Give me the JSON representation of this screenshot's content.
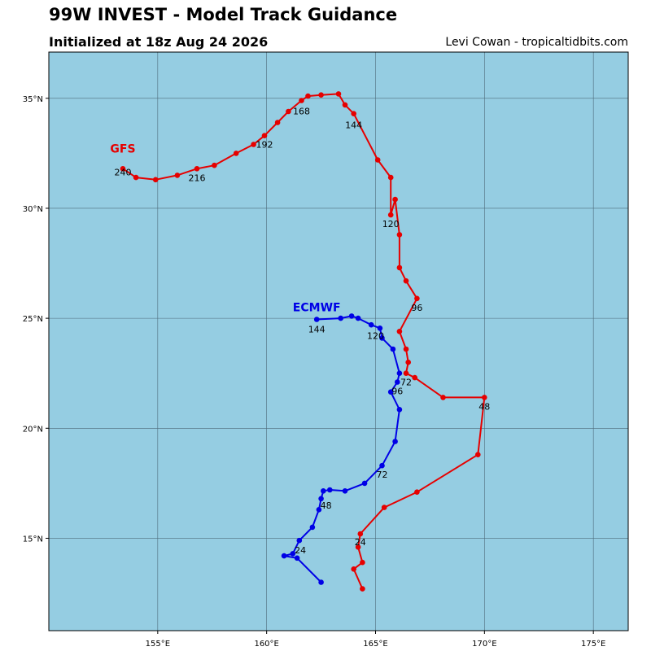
{
  "header": {
    "title": "99W INVEST - Model Track Guidance",
    "subtitle": "Initialized at 18z Aug 24 2026",
    "credit": "Levi Cowan - tropicaltidbits.com"
  },
  "map": {
    "ocean_color": "#95cde2",
    "grid_color": "#4d6a7a",
    "lon_range": [
      150,
      176.6
    ],
    "lat_range": [
      10.8,
      37.1
    ],
    "lon_ticks": [
      {
        "v": 155,
        "label": "155°E"
      },
      {
        "v": 160,
        "label": "160°E"
      },
      {
        "v": 165,
        "label": "165°E"
      },
      {
        "v": 170,
        "label": "170°E"
      },
      {
        "v": 175,
        "label": "175°E"
      }
    ],
    "lat_ticks": [
      {
        "v": 15,
        "label": "15°N"
      },
      {
        "v": 20,
        "label": "20°N"
      },
      {
        "v": 25,
        "label": "25°N"
      },
      {
        "v": 30,
        "label": "30°N"
      },
      {
        "v": 35,
        "label": "35°N"
      }
    ]
  },
  "tracks": [
    {
      "name": "GFS",
      "color": "#e60000",
      "points": [
        [
          164.4,
          12.7
        ],
        [
          164.0,
          13.6
        ],
        [
          164.4,
          13.9
        ],
        [
          164.2,
          14.6
        ],
        [
          164.3,
          15.2
        ],
        [
          165.4,
          16.4
        ],
        [
          166.9,
          17.1
        ],
        [
          169.7,
          18.8
        ],
        [
          170.0,
          21.4
        ],
        [
          168.1,
          21.4
        ],
        [
          166.8,
          22.3
        ],
        [
          166.4,
          22.5
        ],
        [
          166.5,
          23.0
        ],
        [
          166.4,
          23.6
        ],
        [
          166.1,
          24.4
        ],
        [
          166.9,
          25.9
        ],
        [
          166.4,
          26.7
        ],
        [
          166.1,
          27.3
        ],
        [
          166.1,
          28.8
        ],
        [
          165.9,
          30.4
        ],
        [
          165.7,
          29.7
        ],
        [
          165.7,
          31.4
        ],
        [
          165.1,
          32.2
        ],
        [
          164.0,
          34.3
        ],
        [
          163.6,
          34.7
        ],
        [
          163.3,
          35.2
        ],
        [
          162.5,
          35.15
        ],
        [
          161.9,
          35.1
        ],
        [
          161.6,
          34.9
        ],
        [
          161.0,
          34.4
        ],
        [
          160.5,
          33.9
        ],
        [
          159.9,
          33.3
        ],
        [
          159.4,
          32.9
        ],
        [
          158.6,
          32.5
        ],
        [
          157.6,
          31.95
        ],
        [
          156.8,
          31.8
        ],
        [
          155.9,
          31.5
        ],
        [
          154.9,
          31.3
        ],
        [
          154.0,
          31.4
        ],
        [
          153.4,
          31.8
        ]
      ],
      "labels": [
        {
          "i": 4,
          "text": "24",
          "dx": 0,
          "dy": 14
        },
        {
          "i": 8,
          "text": "48",
          "dx": 0,
          "dy": 15
        },
        {
          "i": 11,
          "text": "72",
          "dx": 0,
          "dy": 15
        },
        {
          "i": 15,
          "text": "96",
          "dx": 0,
          "dy": 15
        },
        {
          "i": 20,
          "text": "120",
          "dx": 0,
          "dy": 15
        },
        {
          "i": 23,
          "text": "144",
          "dx": 0,
          "dy": 18
        },
        {
          "i": 28,
          "text": "168",
          "dx": 0,
          "dy": 17
        },
        {
          "i": 31,
          "text": "192",
          "dx": 0,
          "dy": 15
        },
        {
          "i": 35,
          "text": "216",
          "dx": 0,
          "dy": 15
        },
        {
          "i": 39,
          "text": "240",
          "dx": 0,
          "dy": 8
        }
      ],
      "label": {
        "text": "GFS",
        "anchor_i": 39,
        "dx": 0,
        "dy": -20
      }
    },
    {
      "name": "ECMWF",
      "color": "#0000e6",
      "points": [
        [
          162.5,
          13.0
        ],
        [
          161.4,
          14.1
        ],
        [
          160.8,
          14.2
        ],
        [
          161.2,
          14.3
        ],
        [
          161.5,
          14.9
        ],
        [
          162.1,
          15.5
        ],
        [
          162.4,
          16.3
        ],
        [
          162.5,
          16.8
        ],
        [
          162.6,
          17.15
        ],
        [
          162.9,
          17.2
        ],
        [
          163.6,
          17.15
        ],
        [
          164.5,
          17.5
        ],
        [
          165.3,
          18.3
        ],
        [
          165.9,
          19.4
        ],
        [
          166.1,
          20.85
        ],
        [
          165.7,
          21.65
        ],
        [
          166.0,
          22.1
        ],
        [
          166.1,
          22.5
        ],
        [
          165.8,
          23.6
        ],
        [
          165.3,
          24.1
        ],
        [
          165.2,
          24.55
        ],
        [
          164.8,
          24.7
        ],
        [
          164.2,
          25.0
        ],
        [
          163.9,
          25.1
        ],
        [
          163.4,
          25.0
        ],
        [
          162.3,
          24.95
        ]
      ],
      "labels": [
        {
          "i": 1,
          "text": "24",
          "dx": 4,
          "dy": -6
        },
        {
          "i": 7,
          "text": "48",
          "dx": 6,
          "dy": 12
        },
        {
          "i": 12,
          "text": "72",
          "dx": 0,
          "dy": 15
        },
        {
          "i": 16,
          "text": "96",
          "dx": 0,
          "dy": 15
        },
        {
          "i": 19,
          "text": "120",
          "dx": -8,
          "dy": 1
        },
        {
          "i": 25,
          "text": "144",
          "dx": 0,
          "dy": 16
        }
      ],
      "label": {
        "text": "ECMWF",
        "anchor_i": 25,
        "dx": 0,
        "dy": -10
      }
    }
  ]
}
